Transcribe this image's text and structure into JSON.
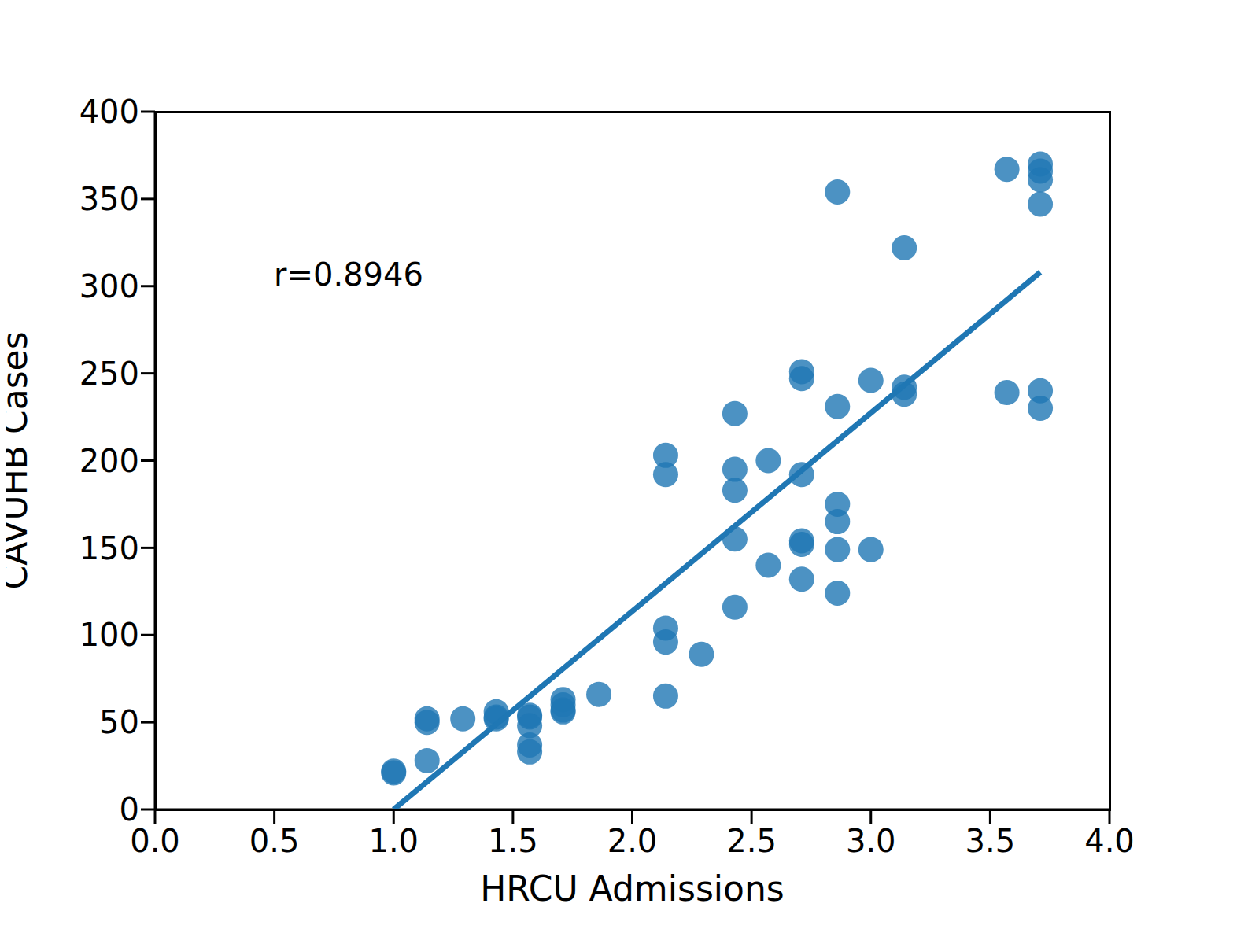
{
  "chart_data": {
    "type": "scatter",
    "x_label": "HRCU Admissions",
    "y_label": "CAVUHB Cases",
    "annotation": "r=0.8946",
    "color": "#1f77b4",
    "marker": "circle",
    "grid": false,
    "x": [
      1.0,
      1.0,
      1.14,
      1.14,
      1.14,
      1.29,
      1.43,
      1.43,
      1.43,
      1.57,
      1.57,
      1.57,
      1.57,
      1.57,
      1.71,
      1.71,
      1.71,
      1.71,
      1.86,
      2.14,
      2.14,
      2.14,
      2.14,
      2.14,
      2.29,
      2.43,
      2.43,
      2.43,
      2.43,
      2.43,
      2.57,
      2.57,
      2.71,
      2.71,
      2.71,
      2.71,
      2.71,
      2.71,
      2.86,
      2.86,
      2.86,
      2.86,
      2.86,
      2.86,
      3.0,
      3.0,
      3.14,
      3.14,
      3.14,
      3.57,
      3.57,
      3.71,
      3.71,
      3.71,
      3.71,
      3.71,
      3.71
    ],
    "values": [
      22,
      21,
      52,
      50,
      28,
      52,
      56,
      53,
      52,
      54,
      53,
      48,
      37,
      33,
      63,
      60,
      56,
      57,
      66,
      203,
      192,
      104,
      96,
      65,
      89,
      227,
      195,
      183,
      155,
      116,
      200,
      140,
      251,
      247,
      192,
      154,
      152,
      132,
      354,
      231,
      175,
      165,
      149,
      124,
      246,
      149,
      322,
      242,
      238,
      367,
      239,
      370,
      366,
      361,
      347,
      240,
      230
    ],
    "fit": {
      "x": [
        1.0,
        3.71
      ],
      "values": [
        0,
        308
      ]
    },
    "xlim": [
      0,
      4
    ],
    "xticks": [
      {
        "value": 0,
        "label": "0.0"
      },
      {
        "value": 0.5,
        "label": "0.5"
      },
      {
        "value": 1,
        "label": "1.0"
      },
      {
        "value": 1.5,
        "label": "1.5"
      },
      {
        "value": 2,
        "label": "2.0"
      },
      {
        "value": 2.5,
        "label": "2.5"
      },
      {
        "value": 3,
        "label": "3.0"
      },
      {
        "value": 3.5,
        "label": "3.5"
      },
      {
        "value": 4,
        "label": "4.0"
      }
    ],
    "ylim": [
      0,
      400
    ],
    "yticks": [
      0,
      50,
      100,
      150,
      200,
      250,
      300,
      350,
      400
    ]
  }
}
